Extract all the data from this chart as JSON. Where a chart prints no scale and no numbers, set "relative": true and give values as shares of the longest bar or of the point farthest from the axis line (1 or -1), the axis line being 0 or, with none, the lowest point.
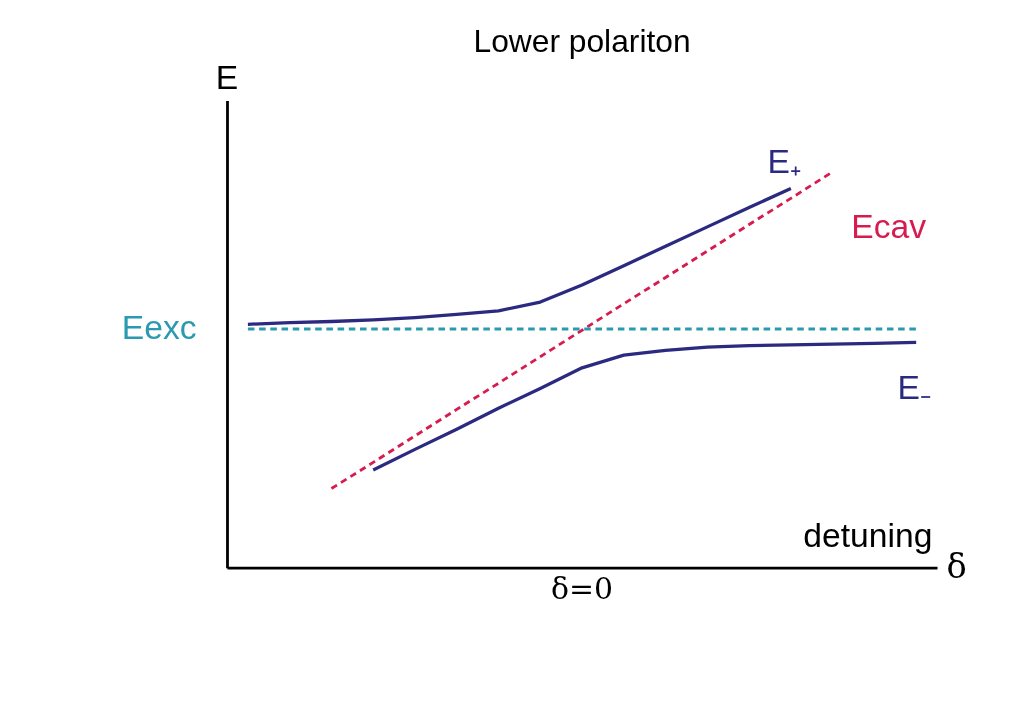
{
  "chart_data": {
    "type": "line",
    "title": "Lower polariton",
    "ylabel": "E",
    "xlabel": "δ",
    "relative": true,
    "marker": "none",
    "categories": [
      null,
      null,
      null,
      null,
      null,
      null,
      null,
      null,
      null,
      null,
      null,
      null,
      null,
      null,
      null,
      null,
      null
    ],
    "series": [
      {
        "name": "E₊",
        "color": "#2b2a80",
        "line_style": "solid",
        "values": [
          0.615,
          0.619,
          0.622,
          0.626,
          0.632,
          0.64,
          0.649,
          0.671,
          0.714,
          0.763,
          0.812,
          0.861,
          0.91,
          0.958,
          null,
          null,
          null
        ]
      },
      {
        "name": "E₋",
        "color": "#2b2a80",
        "line_style": "solid",
        "values": [
          null,
          null,
          null,
          0.247,
          0.299,
          0.35,
          0.403,
          0.453,
          0.505,
          0.537,
          0.549,
          0.557,
          0.561,
          0.563,
          0.565,
          0.567,
          0.569
        ]
      },
      {
        "name": "Ecav",
        "color": "#d81b4f",
        "line_style": "dashed",
        "values": [
          null,
          null,
          0.2,
          0.266,
          0.333,
          0.4,
          0.466,
          0.533,
          0.6,
          0.667,
          0.733,
          0.8,
          0.867,
          0.933,
          1.0,
          null,
          null
        ]
      },
      {
        "name": "Eexc",
        "color": "#2a9ab0",
        "line_style": "dashed",
        "values": [
          0.603,
          0.603,
          0.603,
          0.603,
          0.603,
          0.603,
          0.603,
          0.603,
          0.603,
          0.603,
          0.603,
          0.603,
          0.603,
          0.603,
          0.603,
          0.603,
          0.603
        ]
      }
    ],
    "annotations": [
      "δ=0",
      "detuning"
    ]
  }
}
